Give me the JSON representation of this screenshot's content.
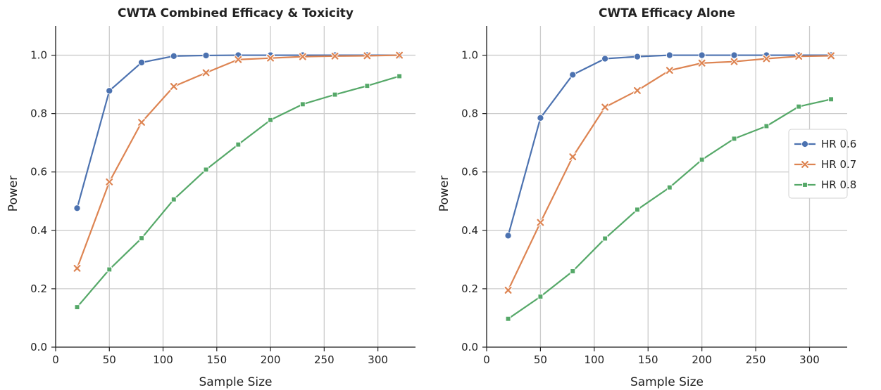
{
  "chart_data": [
    {
      "type": "line",
      "title": "CWTA Combined Efficacy & Toxicity",
      "xlabel": "Sample Size",
      "ylabel": "Power",
      "xlim": [
        0,
        335
      ],
      "ylim": [
        0,
        1.1
      ],
      "xticks": [
        0,
        50,
        100,
        150,
        200,
        250,
        300
      ],
      "yticks": [
        0.0,
        0.2,
        0.4,
        0.6,
        0.8,
        1.0
      ],
      "grid": true,
      "legend": false,
      "x": [
        20,
        50,
        80,
        110,
        140,
        170,
        200,
        230,
        260,
        290,
        320
      ],
      "series": [
        {
          "name": "HR 0.6",
          "marker": "circle",
          "color": "#4c72b0",
          "values": [
            0.476,
            0.878,
            0.975,
            0.997,
            0.999,
            1.0,
            1.0,
            1.0,
            1.0,
            1.0,
            1.0
          ]
        },
        {
          "name": "HR 0.7",
          "marker": "x",
          "color": "#dd8452",
          "values": [
            0.27,
            0.566,
            0.77,
            0.893,
            0.94,
            0.985,
            0.99,
            0.995,
            0.997,
            0.998,
            1.0
          ]
        },
        {
          "name": "HR 0.8",
          "marker": "square",
          "color": "#55a868",
          "values": [
            0.137,
            0.266,
            0.373,
            0.506,
            0.608,
            0.694,
            0.778,
            0.832,
            0.865,
            0.895,
            0.928
          ]
        }
      ]
    },
    {
      "type": "line",
      "title": "CWTA Efficacy Alone",
      "xlabel": "Sample Size",
      "ylabel": "Power",
      "xlim": [
        0,
        335
      ],
      "ylim": [
        0,
        1.1
      ],
      "xticks": [
        0,
        50,
        100,
        150,
        200,
        250,
        300
      ],
      "yticks": [
        0.0,
        0.2,
        0.4,
        0.6,
        0.8,
        1.0
      ],
      "grid": true,
      "legend": "center-right",
      "x": [
        20,
        50,
        80,
        110,
        140,
        170,
        200,
        230,
        260,
        290,
        320
      ],
      "series": [
        {
          "name": "HR 0.6",
          "marker": "circle",
          "color": "#4c72b0",
          "values": [
            0.382,
            0.785,
            0.933,
            0.988,
            0.995,
            1.0,
            1.0,
            1.0,
            1.0,
            1.0,
            1.0
          ]
        },
        {
          "name": "HR 0.7",
          "marker": "x",
          "color": "#dd8452",
          "values": [
            0.195,
            0.427,
            0.652,
            0.822,
            0.879,
            0.948,
            0.973,
            0.978,
            0.988,
            0.996,
            0.998
          ]
        },
        {
          "name": "HR 0.8",
          "marker": "square",
          "color": "#55a868",
          "values": [
            0.097,
            0.173,
            0.26,
            0.372,
            0.471,
            0.547,
            0.642,
            0.714,
            0.757,
            0.824,
            0.849
          ]
        }
      ]
    }
  ]
}
